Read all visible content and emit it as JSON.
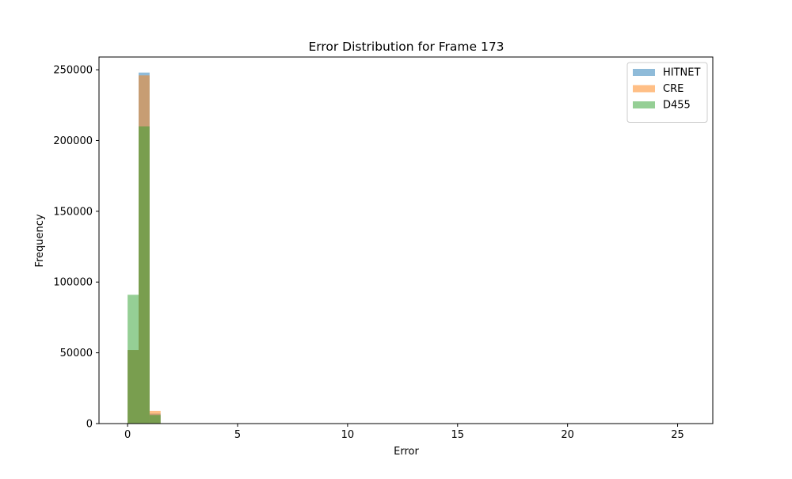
{
  "chart_data": {
    "type": "histogram",
    "title": "Error Distribution for Frame 173",
    "xlabel": "Error",
    "ylabel": "Frequency",
    "xlim": [
      -1.3,
      26.6
    ],
    "ylim": [
      0,
      259000
    ],
    "xticks": [
      0,
      5,
      10,
      15,
      20,
      25
    ],
    "yticks": [
      0,
      50000,
      100000,
      150000,
      200000,
      250000
    ],
    "legend_position": "top-right",
    "grid": false,
    "bin_edges": [
      0.0,
      0.5,
      1.0,
      1.5
    ],
    "series": [
      {
        "name": "HITNET",
        "color": "#1f77b4",
        "alpha": 0.5,
        "values": [
          52000,
          248000,
          7000
        ]
      },
      {
        "name": "CRE",
        "color": "#ff7f0e",
        "alpha": 0.5,
        "values": [
          52000,
          246000,
          9000
        ]
      },
      {
        "name": "D455",
        "color": "#2ca02c",
        "alpha": 0.5,
        "values": [
          91000,
          210000,
          6000
        ]
      }
    ]
  }
}
